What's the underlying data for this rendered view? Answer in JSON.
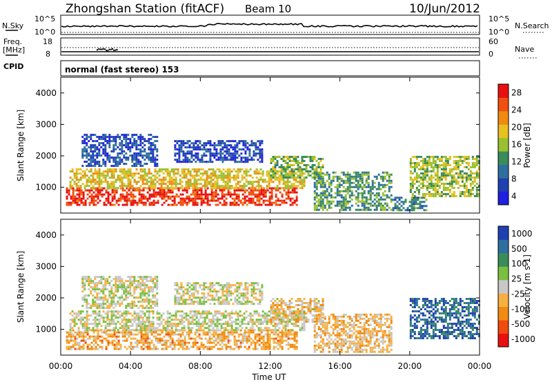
{
  "header": {
    "title": "Zhongshan Station (fitACF)",
    "beam": "Beam 10",
    "date": "10/Jun/2012"
  },
  "top_panel": {
    "left_label": "N.Sky",
    "left_ticks": [
      "10^5",
      "10^0"
    ],
    "right_label": "N.Search",
    "right_ticks": [
      "10^5",
      "10^0"
    ]
  },
  "freq_panel": {
    "left_label_1": "Freq.",
    "left_label_2": "[MHz]",
    "left_ticks": [
      "18",
      "8"
    ],
    "right_label": "Nave",
    "right_ticks": [
      "60",
      "0"
    ]
  },
  "cpid_panel": {
    "label": "CPID",
    "value": "normal (fast stereo) 153"
  },
  "colors": {
    "power": [
      "#2020e0",
      "#2040b0",
      "#2e6fa0",
      "#3a8c5a",
      "#9ac030",
      "#e8c020",
      "#f08a10",
      "#f05010",
      "#e81010"
    ],
    "velocity": [
      "#e81010",
      "#f04a10",
      "#f08a10",
      "#f8b040",
      "#c8c8c8",
      "#7ac040",
      "#3a8c5a",
      "#2e6fa0",
      "#2040b0"
    ]
  },
  "chart_data": [
    {
      "type": "heatmap",
      "title": "",
      "xlabel": "Time UT",
      "ylabel": "Slant Range [km]",
      "ylim": [
        180,
        4500
      ],
      "xlim": [
        "00:00",
        "24:00"
      ],
      "x_ticks": [
        "00:00",
        "04:00",
        "08:00",
        "12:00",
        "16:00",
        "20:00",
        "00:00"
      ],
      "y_ticks": [
        "4000",
        "3000",
        "2000",
        "1000"
      ],
      "colorbar": {
        "label": "Power [dB]",
        "ticks": [
          "28",
          "24",
          "20",
          "16",
          "12",
          "8",
          "4"
        ],
        "range": [
          0,
          30
        ]
      },
      "regions": [
        {
          "t": [
            0.3,
            13.5
          ],
          "r": [
            450,
            1000
          ],
          "v": 27
        },
        {
          "t": [
            0.5,
            14.0
          ],
          "r": [
            1000,
            1600
          ],
          "v": 18
        },
        {
          "t": [
            1.2,
            5.5
          ],
          "r": [
            1700,
            2700
          ],
          "v": 6
        },
        {
          "t": [
            6.5,
            11.5
          ],
          "r": [
            1800,
            2500
          ],
          "v": 5
        },
        {
          "t": [
            12.0,
            15.0
          ],
          "r": [
            1300,
            2000
          ],
          "v": 14
        },
        {
          "t": [
            14.5,
            19.0
          ],
          "r": [
            300,
            1500
          ],
          "v": 12
        },
        {
          "t": [
            19.0,
            21.0
          ],
          "r": [
            300,
            700
          ],
          "v": 10
        },
        {
          "t": [
            20.0,
            24.0
          ],
          "r": [
            700,
            2000
          ],
          "v": 15
        }
      ]
    },
    {
      "type": "heatmap",
      "title": "",
      "xlabel": "Time UT",
      "ylabel": "Slant Range [km]",
      "ylim": [
        180,
        4500
      ],
      "xlim": [
        "00:00",
        "24:00"
      ],
      "x_ticks": [
        "00:00",
        "04:00",
        "08:00",
        "12:00",
        "16:00",
        "20:00",
        "00:00"
      ],
      "y_ticks": [
        "4000",
        "3000",
        "2000",
        "1000"
      ],
      "colorbar": {
        "label": "Velocity [m s-1]",
        "ticks": [
          "1000",
          "500",
          "100",
          "25",
          "-25",
          "-100",
          "-500",
          "-1000"
        ],
        "range": [
          -1000,
          1000
        ]
      },
      "regions": [
        {
          "t": [
            0.3,
            13.5
          ],
          "r": [
            400,
            1000
          ],
          "v": -300
        },
        {
          "t": [
            0.5,
            14.0
          ],
          "r": [
            1000,
            1600
          ],
          "v": 50
        },
        {
          "t": [
            1.2,
            5.5
          ],
          "r": [
            1700,
            2700
          ],
          "v": 10
        },
        {
          "t": [
            6.5,
            11.5
          ],
          "r": [
            1800,
            2500
          ],
          "v": 0
        },
        {
          "t": [
            12.0,
            15.0
          ],
          "r": [
            1200,
            2000
          ],
          "v": -150
        },
        {
          "t": [
            14.5,
            19.0
          ],
          "r": [
            300,
            1500
          ],
          "v": -200
        },
        {
          "t": [
            20.0,
            24.0
          ],
          "r": [
            700,
            2000
          ],
          "v": 700
        }
      ]
    }
  ]
}
